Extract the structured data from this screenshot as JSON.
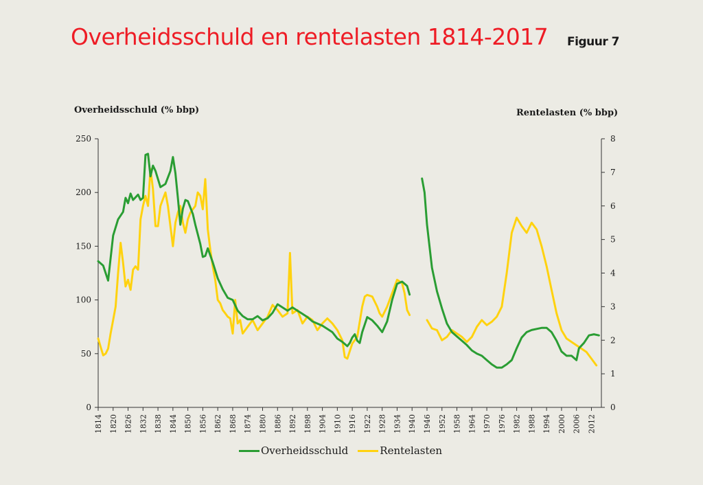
{
  "header": {
    "title": "Overheidsschuld en rentelasten 1814-2017",
    "figure_label": "Figuur 7"
  },
  "colors": {
    "green": "#2a9d33",
    "yellow": "#ffd20f",
    "title": "#ee1c25",
    "background": "#ecebe4"
  },
  "chart_data": {
    "type": "line",
    "ylabel_left": "Overheidsschuld (% bbp)",
    "ylabel_right": "Rentelasten (% bbp)",
    "y_left_ticks": [
      "0",
      "50",
      "100",
      "150",
      "200",
      "250"
    ],
    "y_right_ticks": [
      "0",
      "1",
      "2",
      "3",
      "4",
      "5",
      "6",
      "7",
      "8"
    ],
    "ylim_left": [
      0,
      250
    ],
    "ylim_right": [
      0,
      8
    ],
    "xlim": [
      1814,
      2016
    ],
    "x_ticks": [
      "1814",
      "1820",
      "1826",
      "1832",
      "1838",
      "1844",
      "1850",
      "1856",
      "1862",
      "1868",
      "1874",
      "1880",
      "1886",
      "1892",
      "1898",
      "1904",
      "1910",
      "1916",
      "1922",
      "1928",
      "1934",
      "1940",
      "1946",
      "1952",
      "1958",
      "1964",
      "1970",
      "1976",
      "1982",
      "1988",
      "1994",
      "2000",
      "2006",
      "2012"
    ],
    "grid": false,
    "legend": "bottom",
    "series": [
      {
        "name": "Overheidsschuld",
        "axis": "left",
        "segments": [
          [
            [
              1814,
              136
            ],
            [
              1816,
              132
            ],
            [
              1818,
              118
            ],
            [
              1820,
              160
            ],
            [
              1822,
              175
            ],
            [
              1824,
              182
            ],
            [
              1825,
              195
            ],
            [
              1826,
              190
            ],
            [
              1827,
              199
            ],
            [
              1828,
              193
            ],
            [
              1830,
              198
            ],
            [
              1831,
              193
            ],
            [
              1832,
              195
            ],
            [
              1833,
              235
            ],
            [
              1834,
              236
            ],
            [
              1835,
              215
            ],
            [
              1836,
              225
            ],
            [
              1837,
              220
            ],
            [
              1839,
              205
            ],
            [
              1841,
              208
            ],
            [
              1843,
              220
            ],
            [
              1844,
              233
            ],
            [
              1845,
              218
            ],
            [
              1846,
              195
            ],
            [
              1847,
              170
            ],
            [
              1848,
              185
            ],
            [
              1849,
              193
            ],
            [
              1850,
              192
            ],
            [
              1852,
              180
            ],
            [
              1853,
              170
            ],
            [
              1855,
              152
            ],
            [
              1856,
              140
            ],
            [
              1857,
              141
            ],
            [
              1858,
              148
            ],
            [
              1860,
              135
            ],
            [
              1862,
              120
            ],
            [
              1864,
              110
            ],
            [
              1866,
              102
            ],
            [
              1868,
              100
            ],
            [
              1870,
              90
            ],
            [
              1872,
              85
            ],
            [
              1874,
              82
            ],
            [
              1876,
              82
            ],
            [
              1878,
              85
            ],
            [
              1880,
              81
            ],
            [
              1882,
              83
            ],
            [
              1884,
              88
            ],
            [
              1886,
              96
            ],
            [
              1888,
              93
            ],
            [
              1890,
              90
            ],
            [
              1892,
              93
            ],
            [
              1894,
              90
            ],
            [
              1896,
              87
            ],
            [
              1898,
              84
            ],
            [
              1900,
              80
            ],
            [
              1902,
              78
            ],
            [
              1904,
              76
            ],
            [
              1906,
              73
            ],
            [
              1908,
              70
            ],
            [
              1910,
              64
            ],
            [
              1912,
              61
            ],
            [
              1914,
              57
            ],
            [
              1915,
              60
            ],
            [
              1916,
              65
            ],
            [
              1917,
              68
            ],
            [
              1918,
              62
            ],
            [
              1919,
              60
            ],
            [
              1920,
              70
            ],
            [
              1922,
              84
            ],
            [
              1924,
              81
            ],
            [
              1926,
              76
            ],
            [
              1928,
              70
            ],
            [
              1930,
              80
            ],
            [
              1932,
              100
            ],
            [
              1934,
              115
            ],
            [
              1936,
              117
            ],
            [
              1938,
              113
            ],
            [
              1939,
              105
            ]
          ],
          [
            [
              1944,
              213
            ],
            [
              1945,
              200
            ],
            [
              1946,
              170
            ],
            [
              1947,
              150
            ],
            [
              1948,
              130
            ],
            [
              1950,
              108
            ],
            [
              1952,
              92
            ],
            [
              1954,
              78
            ],
            [
              1956,
              70
            ],
            [
              1958,
              66
            ],
            [
              1960,
              62
            ],
            [
              1962,
              58
            ],
            [
              1964,
              53
            ],
            [
              1966,
              50
            ],
            [
              1968,
              48
            ],
            [
              1970,
              44
            ],
            [
              1972,
              40
            ],
            [
              1974,
              37
            ],
            [
              1976,
              37
            ],
            [
              1978,
              40
            ],
            [
              1980,
              44
            ],
            [
              1982,
              55
            ],
            [
              1984,
              65
            ],
            [
              1986,
              70
            ],
            [
              1988,
              72
            ],
            [
              1990,
              73
            ],
            [
              1992,
              74
            ],
            [
              1994,
              74
            ],
            [
              1996,
              70
            ],
            [
              1998,
              62
            ],
            [
              2000,
              52
            ],
            [
              2002,
              48
            ],
            [
              2004,
              48
            ],
            [
              2006,
              44
            ],
            [
              2007,
              55
            ],
            [
              2009,
              60
            ],
            [
              2011,
              67
            ],
            [
              2013,
              68
            ],
            [
              2015,
              67
            ]
          ]
        ]
      },
      {
        "name": "Rentelasten",
        "axis": "right",
        "segments": [
          [
            [
              1814,
              2.05
            ],
            [
              1815,
              1.8
            ],
            [
              1816,
              1.55
            ],
            [
              1817,
              1.6
            ],
            [
              1818,
              1.75
            ],
            [
              1819,
              2.2
            ],
            [
              1820,
              2.6
            ],
            [
              1821,
              3.0
            ],
            [
              1822,
              4.0
            ],
            [
              1823,
              4.9
            ],
            [
              1824,
              4.3
            ],
            [
              1825,
              3.6
            ],
            [
              1826,
              3.8
            ],
            [
              1827,
              3.5
            ],
            [
              1828,
              4.1
            ],
            [
              1829,
              4.2
            ],
            [
              1830,
              4.1
            ],
            [
              1831,
              5.6
            ],
            [
              1832,
              6.0
            ],
            [
              1833,
              6.3
            ],
            [
              1834,
              6.0
            ],
            [
              1835,
              7.1
            ],
            [
              1836,
              6.5
            ],
            [
              1837,
              5.4
            ],
            [
              1838,
              5.4
            ],
            [
              1839,
              6.0
            ],
            [
              1840,
              6.2
            ],
            [
              1841,
              6.4
            ],
            [
              1842,
              6.0
            ],
            [
              1843,
              5.4
            ],
            [
              1844,
              4.8
            ],
            [
              1845,
              5.5
            ],
            [
              1846,
              5.8
            ],
            [
              1847,
              6.0
            ],
            [
              1848,
              5.5
            ],
            [
              1849,
              5.2
            ],
            [
              1850,
              5.6
            ],
            [
              1851,
              5.8
            ],
            [
              1852,
              5.9
            ],
            [
              1853,
              6.0
            ],
            [
              1854,
              6.4
            ],
            [
              1855,
              6.3
            ],
            [
              1856,
              5.9
            ],
            [
              1857,
              6.8
            ],
            [
              1858,
              5.3
            ],
            [
              1859,
              4.7
            ],
            [
              1860,
              4.2
            ],
            [
              1861,
              3.8
            ],
            [
              1862,
              3.2
            ],
            [
              1863,
              3.1
            ],
            [
              1864,
              2.9
            ],
            [
              1865,
              2.8
            ],
            [
              1866,
              2.7
            ],
            [
              1867,
              2.65
            ],
            [
              1868,
              2.2
            ],
            [
              1869,
              3.2
            ],
            [
              1870,
              2.5
            ],
            [
              1871,
              2.6
            ],
            [
              1872,
              2.2
            ],
            [
              1874,
              2.4
            ],
            [
              1876,
              2.6
            ],
            [
              1878,
              2.3
            ],
            [
              1880,
              2.5
            ],
            [
              1882,
              2.7
            ],
            [
              1884,
              3.05
            ],
            [
              1886,
              2.9
            ],
            [
              1888,
              2.7
            ],
            [
              1890,
              2.8
            ],
            [
              1891,
              4.6
            ],
            [
              1892,
              2.8
            ],
            [
              1894,
              2.9
            ],
            [
              1896,
              2.5
            ],
            [
              1898,
              2.7
            ],
            [
              1900,
              2.6
            ],
            [
              1902,
              2.3
            ],
            [
              1904,
              2.5
            ],
            [
              1906,
              2.65
            ],
            [
              1908,
              2.5
            ],
            [
              1910,
              2.3
            ],
            [
              1912,
              2.0
            ],
            [
              1913,
              1.5
            ],
            [
              1914,
              1.45
            ],
            [
              1916,
              1.9
            ],
            [
              1918,
              2.1
            ],
            [
              1920,
              3.0
            ],
            [
              1921,
              3.3
            ],
            [
              1922,
              3.35
            ],
            [
              1924,
              3.3
            ],
            [
              1926,
              3.0
            ],
            [
              1927,
              2.8
            ],
            [
              1928,
              2.7
            ],
            [
              1930,
              3.0
            ],
            [
              1932,
              3.4
            ],
            [
              1934,
              3.8
            ],
            [
              1936,
              3.7
            ],
            [
              1937,
              3.4
            ],
            [
              1938,
              2.9
            ],
            [
              1939,
              2.75
            ]
          ],
          [
            [
              1946,
              2.6
            ],
            [
              1948,
              2.35
            ],
            [
              1950,
              2.3
            ],
            [
              1952,
              2.0
            ],
            [
              1954,
              2.1
            ],
            [
              1956,
              2.3
            ],
            [
              1958,
              2.2
            ],
            [
              1960,
              2.1
            ],
            [
              1962,
              1.95
            ],
            [
              1964,
              2.1
            ],
            [
              1966,
              2.4
            ],
            [
              1968,
              2.6
            ],
            [
              1970,
              2.45
            ],
            [
              1972,
              2.55
            ],
            [
              1974,
              2.7
            ],
            [
              1976,
              3.0
            ],
            [
              1978,
              4.0
            ],
            [
              1980,
              5.2
            ],
            [
              1982,
              5.65
            ],
            [
              1984,
              5.4
            ],
            [
              1986,
              5.2
            ],
            [
              1988,
              5.5
            ],
            [
              1990,
              5.3
            ],
            [
              1992,
              4.8
            ],
            [
              1994,
              4.2
            ],
            [
              1996,
              3.5
            ],
            [
              1998,
              2.8
            ],
            [
              2000,
              2.3
            ],
            [
              2002,
              2.05
            ],
            [
              2004,
              1.95
            ],
            [
              2006,
              1.85
            ],
            [
              2008,
              1.75
            ],
            [
              2010,
              1.65
            ],
            [
              2012,
              1.45
            ],
            [
              2014,
              1.25
            ]
          ]
        ]
      }
    ]
  }
}
